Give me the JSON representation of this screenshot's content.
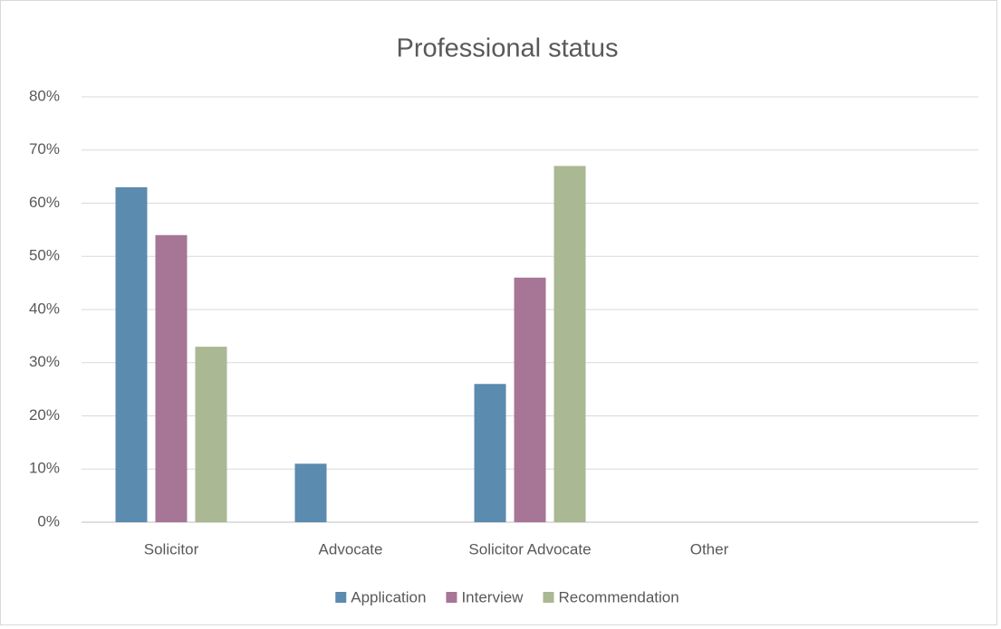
{
  "chart_data": {
    "type": "bar",
    "title": "Professional status",
    "categories": [
      "Solicitor",
      "Advocate",
      "Solicitor Advocate",
      "Other",
      null
    ],
    "series": [
      {
        "name": "Application",
        "color": "#5b8bae",
        "values": [
          63,
          11,
          26,
          0,
          null
        ]
      },
      {
        "name": "Interview",
        "color": "#a77595",
        "values": [
          54,
          0,
          46,
          0,
          null
        ]
      },
      {
        "name": "Recommendation",
        "color": "#aab893",
        "values": [
          33,
          0,
          67,
          0,
          null
        ]
      }
    ],
    "ylim": [
      0,
      80
    ],
    "yticks": [
      {
        "value": 0,
        "label": "0%"
      },
      {
        "value": 10,
        "label": "10%"
      },
      {
        "value": 20,
        "label": "20%"
      },
      {
        "value": 30,
        "label": "30%"
      },
      {
        "value": 40,
        "label": "40%"
      },
      {
        "value": 50,
        "label": "50%"
      },
      {
        "value": 60,
        "label": "60%"
      },
      {
        "value": 70,
        "label": "70%"
      },
      {
        "value": 80,
        "label": "80%"
      }
    ],
    "grid": true,
    "legend": "bottom"
  }
}
